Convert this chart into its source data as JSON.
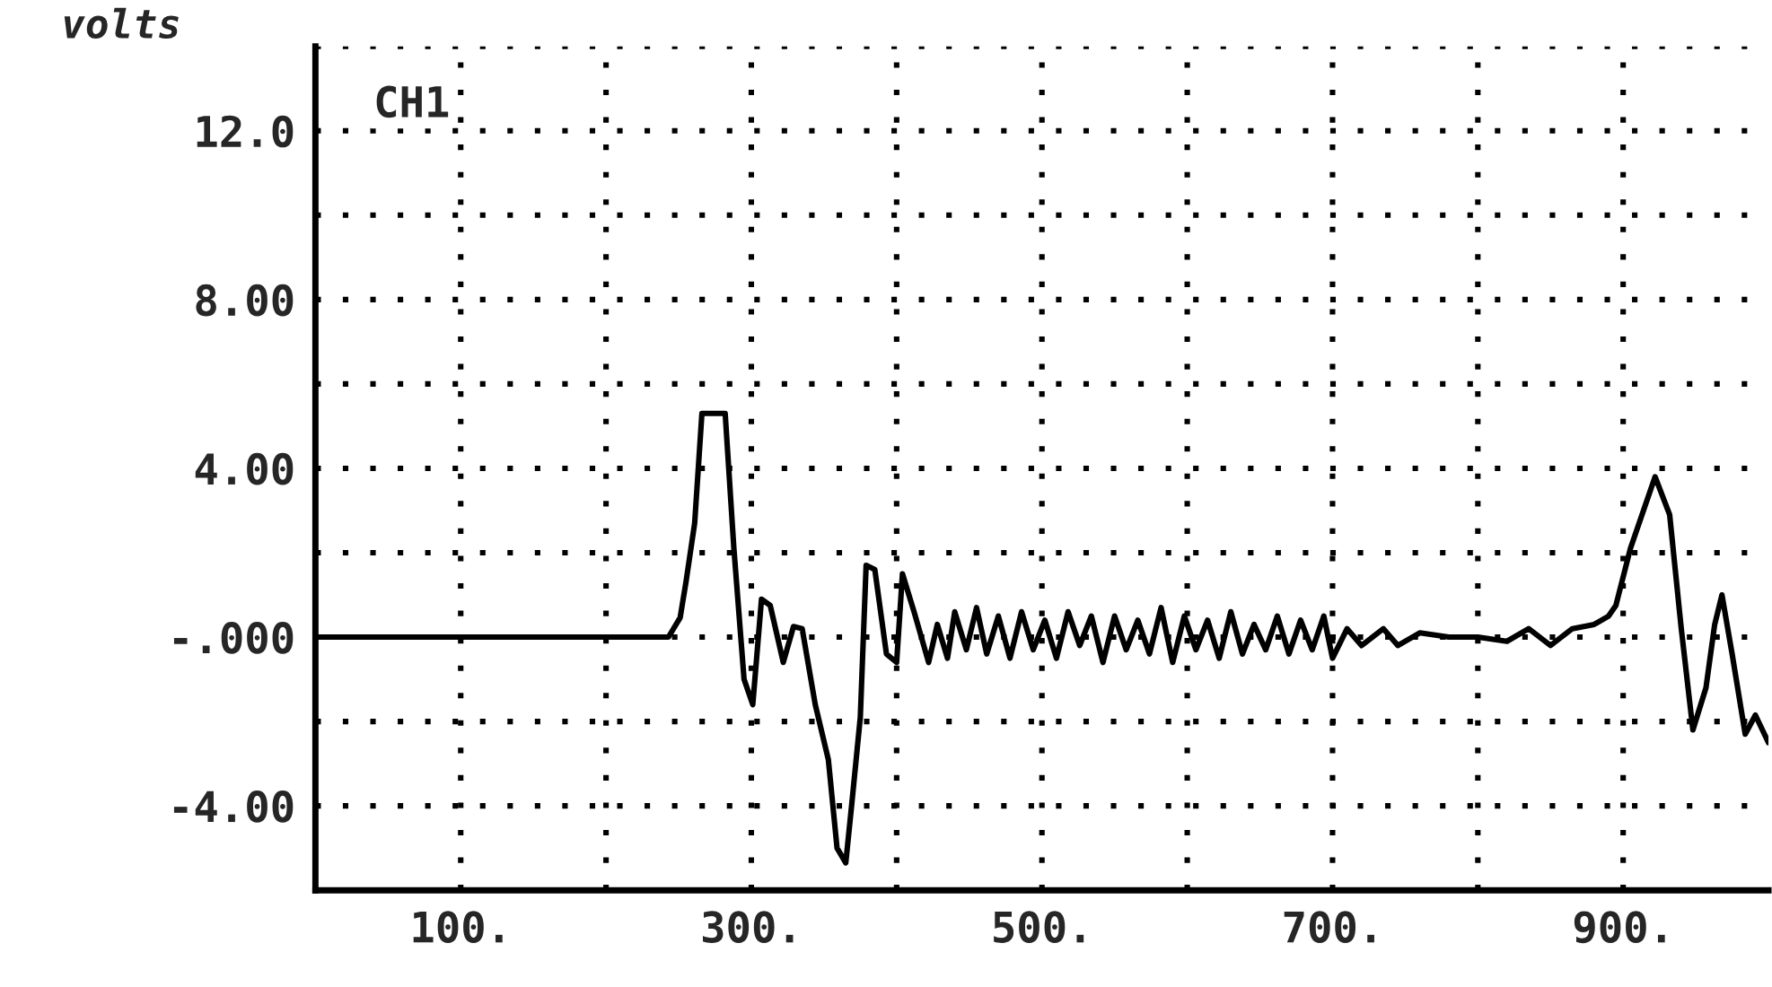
{
  "chart_data": {
    "type": "line",
    "ylabel": "volts",
    "annotations": [
      "CH1"
    ],
    "x": [
      0,
      243,
      251,
      255,
      261,
      266,
      282,
      288,
      295,
      301,
      307,
      313,
      322,
      329,
      335,
      344,
      353,
      359,
      365,
      369,
      375,
      379,
      385,
      393,
      400,
      404,
      412,
      422,
      428,
      435,
      440,
      448,
      455,
      462,
      470,
      478,
      486,
      494,
      502,
      510,
      518,
      526,
      534,
      542,
      550,
      558,
      566,
      574,
      582,
      590,
      598,
      606,
      614,
      622,
      630,
      638,
      646,
      654,
      662,
      670,
      678,
      686,
      694,
      700,
      710,
      720,
      735,
      745,
      760,
      780,
      800,
      820,
      835,
      850,
      865,
      880,
      890,
      895,
      905,
      922,
      932,
      940,
      948,
      957,
      963,
      968,
      975,
      984,
      991,
      1000
    ],
    "series": [
      {
        "color": "#000000",
        "values": [
          0,
          0,
          0.46,
          1.3,
          2.7,
          5.3,
          5.3,
          2.1,
          -1.0,
          -1.6,
          0.9,
          0.75,
          -0.6,
          0.25,
          0.2,
          -1.6,
          -2.9,
          -5.0,
          -5.35,
          -4.0,
          -1.9,
          1.7,
          1.6,
          -0.4,
          -0.6,
          1.5,
          0.6,
          -0.6,
          0.3,
          -0.5,
          0.6,
          -0.3,
          0.7,
          -0.4,
          0.5,
          -0.5,
          0.6,
          -0.3,
          0.4,
          -0.5,
          0.6,
          -0.2,
          0.5,
          -0.6,
          0.5,
          -0.3,
          0.4,
          -0.4,
          0.7,
          -0.6,
          0.5,
          -0.3,
          0.4,
          -0.5,
          0.6,
          -0.4,
          0.3,
          -0.3,
          0.5,
          -0.4,
          0.4,
          -0.3,
          0.5,
          -0.5,
          0.2,
          -0.2,
          0.2,
          -0.2,
          0.1,
          0,
          0,
          -0.1,
          0.2,
          -0.2,
          0.2,
          0.3,
          0.5,
          0.75,
          2.1,
          3.8,
          2.9,
          0.2,
          -2.2,
          -1.2,
          0.3,
          1.0,
          -0.4,
          -2.3,
          -1.85,
          -2.5
        ]
      }
    ],
    "xlim": [
      0,
      1000
    ],
    "ylim": [
      -6,
      14
    ],
    "xticks": [
      {
        "value": 100,
        "label": "100."
      },
      {
        "value": 200,
        "label": null
      },
      {
        "value": 300,
        "label": "300."
      },
      {
        "value": 400,
        "label": null
      },
      {
        "value": 500,
        "label": "500."
      },
      {
        "value": 600,
        "label": null
      },
      {
        "value": 700,
        "label": "700."
      },
      {
        "value": 800,
        "label": null
      },
      {
        "value": 900,
        "label": "900."
      }
    ],
    "yticks": [
      {
        "value": -4,
        "label": "-4.00"
      },
      {
        "value": -2,
        "label": null
      },
      {
        "value": 0,
        "label": "-.000"
      },
      {
        "value": 2,
        "label": null
      },
      {
        "value": 4,
        "label": "4.00"
      },
      {
        "value": 6,
        "label": null
      },
      {
        "value": 8,
        "label": "8.00"
      },
      {
        "value": 10,
        "label": null
      },
      {
        "value": 12,
        "label": "12.0"
      },
      {
        "value": 14,
        "label": null
      }
    ],
    "grid": true,
    "legend": false,
    "marker": "none",
    "line_style": "solid"
  }
}
